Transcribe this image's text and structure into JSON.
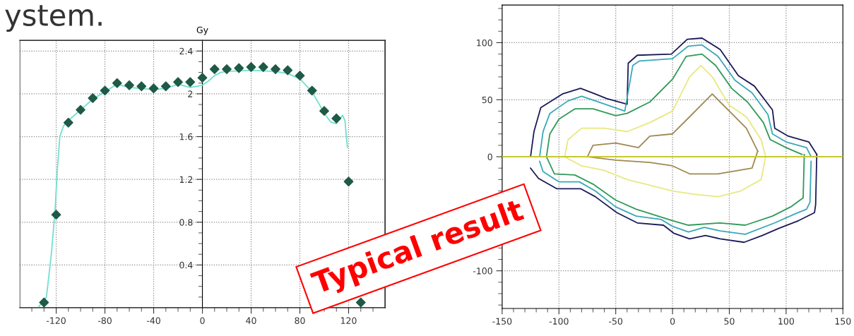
{
  "chart_data": [
    {
      "type": "line",
      "ylabel": "Gy",
      "xlim": [
        -150,
        150
      ],
      "ylim": [
        0,
        2.5
      ],
      "grid": true,
      "legend": false,
      "annotations": [
        "ystem."
      ],
      "xticks": [
        {
          "value": -140,
          "label": null
        },
        {
          "value": -130,
          "label": null
        },
        -120,
        {
          "value": -110,
          "label": null
        },
        {
          "value": -100,
          "label": null
        },
        {
          "value": -90,
          "label": null
        },
        -80,
        {
          "value": -70,
          "label": null
        },
        {
          "value": -60,
          "label": null
        },
        {
          "value": -50,
          "label": null
        },
        -40,
        {
          "value": -30,
          "label": null
        },
        {
          "value": -20,
          "label": null
        },
        {
          "value": -10,
          "label": null
        },
        0,
        {
          "value": 10,
          "label": null
        },
        {
          "value": 20,
          "label": null
        },
        {
          "value": 30,
          "label": null
        },
        40,
        {
          "value": 50,
          "label": null
        },
        {
          "value": 60,
          "label": null
        },
        {
          "value": 70,
          "label": null
        },
        80,
        {
          "value": 90,
          "label": null
        },
        {
          "value": 100,
          "label": null
        },
        {
          "value": 110,
          "label": null
        },
        120,
        {
          "value": 130,
          "label": null
        },
        {
          "value": 140,
          "label": null
        }
      ],
      "yticks": [
        {
          "value": 0.1,
          "label": null
        },
        {
          "value": 0.2,
          "label": null
        },
        {
          "value": 0.3,
          "label": null
        },
        0.4,
        {
          "value": 0.5,
          "label": null
        },
        {
          "value": 0.6,
          "label": null
        },
        {
          "value": 0.7,
          "label": null
        },
        0.8,
        {
          "value": 0.9,
          "label": null
        },
        {
          "value": 1.0,
          "label": null
        },
        {
          "value": 1.1,
          "label": null
        },
        1.2,
        {
          "value": 1.3,
          "label": null
        },
        {
          "value": 1.4,
          "label": null
        },
        {
          "value": 1.5,
          "label": null
        },
        1.6,
        {
          "value": 1.7,
          "label": null
        },
        {
          "value": 1.8,
          "label": null
        },
        {
          "value": 1.9,
          "label": null
        },
        2,
        {
          "value": 2.1,
          "label": null
        },
        {
          "value": 2.2,
          "label": null
        },
        {
          "value": 2.3,
          "label": null
        },
        2.4
      ],
      "series": [
        {
          "type": "line",
          "color": "#70e0d0",
          "marker": "none",
          "line_style": "solid",
          "x": [
            -135,
            -128,
            -124,
            -121,
            -119,
            -117,
            -114,
            -110,
            -100,
            -90,
            -80,
            -70,
            -60,
            -50,
            -40,
            -30,
            -20,
            -10,
            0,
            5,
            10,
            15,
            20,
            40,
            60,
            70,
            80,
            90,
            100,
            105,
            110,
            115,
            117,
            119
          ],
          "values": [
            0,
            0.1,
            0.5,
            0.9,
            1.3,
            1.6,
            1.7,
            1.75,
            1.85,
            1.95,
            2.02,
            2.09,
            2.06,
            2.05,
            2.04,
            2.05,
            2.09,
            2.06,
            2.08,
            2.12,
            2.17,
            2.2,
            2.21,
            2.22,
            2.21,
            2.19,
            2.14,
            2.02,
            1.82,
            1.74,
            1.72,
            1.8,
            1.75,
            1.5
          ]
        },
        {
          "type": "scatter",
          "color": "#1f5a46",
          "marker": "diamond",
          "x": [
            -130,
            -120,
            -110,
            -100,
            -90,
            -80,
            -70,
            -60,
            -50,
            -40,
            -30,
            -20,
            -10,
            0,
            10,
            20,
            30,
            40,
            50,
            60,
            70,
            80,
            90,
            100,
            110,
            120,
            130
          ],
          "values": [
            0.05,
            0.87,
            1.73,
            1.85,
            1.96,
            2.03,
            2.1,
            2.08,
            2.07,
            2.05,
            2.07,
            2.11,
            2.11,
            2.15,
            2.23,
            2.23,
            2.24,
            2.25,
            2.25,
            2.23,
            2.22,
            2.17,
            2.03,
            1.84,
            1.77,
            1.18,
            0.05
          ]
        }
      ]
    },
    {
      "type": "line",
      "xlim": [
        -150,
        150
      ],
      "ylim": [
        -133,
        133
      ],
      "grid": true,
      "legend": false,
      "marker": "none",
      "line_style": "solid",
      "annotations": [
        "Typical result"
      ],
      "xticks": [
        -150,
        {
          "value": -140,
          "label": null
        },
        {
          "value": -130,
          "label": null
        },
        {
          "value": -120,
          "label": null
        },
        {
          "value": -110,
          "label": null
        },
        -100,
        {
          "value": -90,
          "label": null
        },
        {
          "value": -80,
          "label": null
        },
        {
          "value": -70,
          "label": null
        },
        {
          "value": -60,
          "label": null
        },
        -50,
        {
          "value": -40,
          "label": null
        },
        {
          "value": -30,
          "label": null
        },
        {
          "value": -20,
          "label": null
        },
        {
          "value": -10,
          "label": null
        },
        0,
        {
          "value": 10,
          "label": null
        },
        {
          "value": 20,
          "label": null
        },
        {
          "value": 30,
          "label": null
        },
        {
          "value": 40,
          "label": null
        },
        50,
        {
          "value": 60,
          "label": null
        },
        {
          "value": 70,
          "label": null
        },
        {
          "value": 80,
          "label": null
        },
        {
          "value": 90,
          "label": null
        },
        100,
        {
          "value": 110,
          "label": null
        },
        {
          "value": 120,
          "label": null
        },
        {
          "value": 130,
          "label": null
        },
        {
          "value": 140,
          "label": null
        },
        150
      ],
      "yticks": [
        {
          "value": -130,
          "label": null
        },
        {
          "value": -120,
          "label": null
        },
        {
          "value": -110,
          "label": null
        },
        -100,
        {
          "value": -90,
          "label": null
        },
        {
          "value": -80,
          "label": null
        },
        {
          "value": -70,
          "label": null
        },
        {
          "value": -60,
          "label": null
        },
        {
          "value": -50,
          "label": null
        },
        {
          "value": -40,
          "label": null
        },
        {
          "value": -30,
          "label": null
        },
        {
          "value": -20,
          "label": null
        },
        {
          "value": -10,
          "label": null
        },
        0,
        {
          "value": 10,
          "label": null
        },
        {
          "value": 20,
          "label": null
        },
        {
          "value": 30,
          "label": null
        },
        {
          "value": 40,
          "label": null
        },
        50,
        {
          "value": 60,
          "label": null
        },
        {
          "value": 70,
          "label": null
        },
        {
          "value": 80,
          "label": null
        },
        {
          "value": 90,
          "label": null
        },
        100,
        {
          "value": 110,
          "label": null
        },
        {
          "value": 120,
          "label": null
        },
        {
          "value": 130,
          "label": null
        }
      ],
      "ref_lines": [
        {
          "axis": "y",
          "value": 0,
          "color": "#c8c830",
          "line_style": "solid"
        }
      ],
      "series": [
        {
          "color": "#1a1a5a",
          "x": [
            -125,
            -122,
            -116,
            -97,
            -81,
            -68,
            -58,
            -40,
            -39,
            -31,
            -1,
            13,
            26,
            42,
            58,
            72,
            88,
            90,
            102,
            120,
            127
          ],
          "values": [
            0,
            22,
            43,
            55,
            60,
            55,
            51,
            46,
            82,
            89,
            90,
            103,
            104,
            94,
            71,
            62,
            41,
            25,
            18,
            13,
            2
          ]
        },
        {
          "color": "#1a1a5a",
          "x": [
            -125,
            -118,
            -102,
            -81,
            -68,
            -49,
            -31,
            -8,
            1,
            15,
            29,
            42,
            63,
            79,
            93,
            111,
            125,
            126,
            127
          ],
          "values": [
            -10,
            -19,
            -28,
            -28,
            -35,
            -49,
            -58,
            -60,
            -67,
            -72,
            -69,
            -72,
            -75,
            -69,
            -63,
            -56,
            -49,
            -42,
            2
          ]
        },
        {
          "color": "#3aa8b8",
          "x": [
            -117,
            -114,
            -108,
            -92,
            -80,
            -68,
            -42,
            -35,
            -29,
            0,
            14,
            26,
            40,
            55,
            70,
            84,
            88,
            100,
            118,
            122
          ],
          "values": [
            0,
            22,
            38,
            49,
            53,
            49,
            40,
            80,
            84,
            86,
            97,
            98,
            88,
            67,
            56,
            37,
            20,
            13,
            8,
            0
          ]
        },
        {
          "color": "#3aa8b8",
          "x": [
            -117,
            -114,
            -100,
            -82,
            -68,
            -50,
            -32,
            -10,
            0,
            14,
            28,
            42,
            64,
            90,
            108,
            118,
            121,
            122
          ],
          "values": [
            -4,
            -13,
            -22,
            -22,
            -30,
            -44,
            -52,
            -55,
            -61,
            -66,
            -62,
            -65,
            -68,
            -58,
            -50,
            -46,
            -40,
            -4
          ]
        },
        {
          "color": "#2f9a5a",
          "x": [
            -111,
            -108,
            -100,
            -86,
            -70,
            -50,
            -40,
            -20,
            0,
            12,
            26,
            38,
            52,
            66,
            80,
            86,
            100,
            114
          ],
          "values": [
            0,
            20,
            33,
            42,
            42,
            36,
            38,
            48,
            68,
            88,
            90,
            80,
            60,
            48,
            30,
            15,
            8,
            2
          ]
        },
        {
          "color": "#2f9a5a",
          "x": [
            -111,
            -104,
            -86,
            -70,
            -50,
            -32,
            0,
            14,
            42,
            64,
            88,
            104,
            115,
            116
          ],
          "values": [
            0,
            -15,
            -16,
            -24,
            -38,
            -46,
            -56,
            -60,
            -58,
            -60,
            -52,
            -44,
            -36,
            2
          ]
        },
        {
          "color": "#e8e880",
          "x": [
            -95,
            -92,
            -80,
            -60,
            -40,
            -20,
            0,
            15,
            25,
            35,
            50,
            65,
            78,
            82
          ],
          "values": [
            0,
            15,
            25,
            25,
            22,
            30,
            40,
            70,
            80,
            70,
            45,
            35,
            15,
            0
          ]
        },
        {
          "color": "#e8e880",
          "x": [
            -95,
            -80,
            -60,
            -40,
            -20,
            0,
            20,
            40,
            60,
            78,
            82
          ],
          "values": [
            0,
            -8,
            -12,
            -20,
            -25,
            -30,
            -33,
            -35,
            -30,
            -20,
            0
          ]
        },
        {
          "color": "#a08850",
          "x": [
            -75,
            -70,
            -50,
            -30,
            -20,
            0,
            15,
            35,
            50,
            65,
            75
          ],
          "values": [
            0,
            10,
            12,
            8,
            18,
            20,
            35,
            55,
            40,
            25,
            5
          ]
        },
        {
          "color": "#a08850",
          "x": [
            -75,
            -50,
            -20,
            0,
            15,
            40,
            70,
            75
          ],
          "values": [
            0,
            -3,
            -5,
            -8,
            -15,
            -15,
            -10,
            5
          ]
        }
      ]
    }
  ]
}
